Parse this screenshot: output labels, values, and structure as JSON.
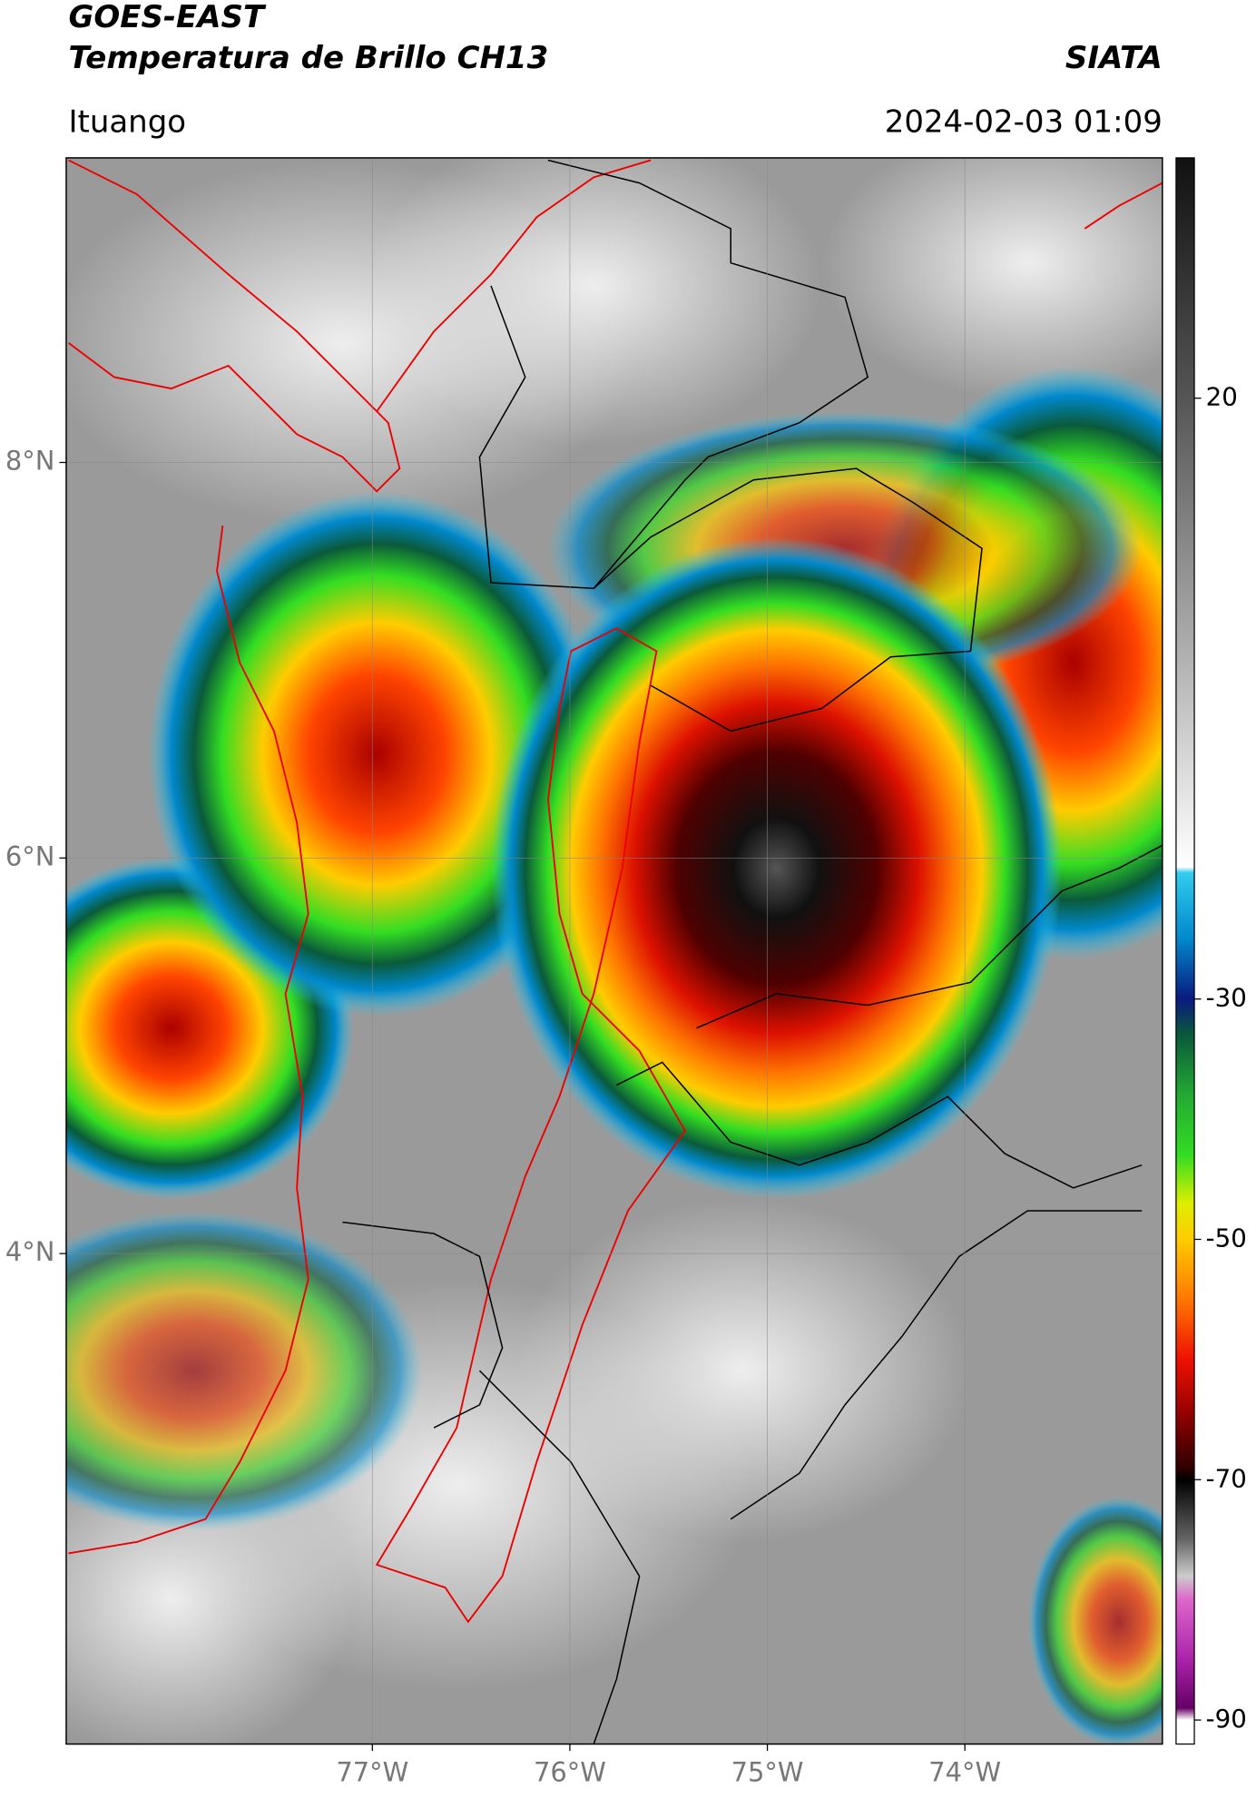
{
  "header": {
    "title": "GOES-EAST",
    "subtitle": "Temperatura de Brillo CH13",
    "brand": "SIATA",
    "location": "Ituango",
    "timestamp": "2024-02-03 01:09"
  },
  "map": {
    "xlim": [
      -78.55,
      -73.0
    ],
    "ylim": [
      1.52,
      9.54
    ],
    "xticks": [
      {
        "value": -77,
        "label": "77°W"
      },
      {
        "value": -76,
        "label": "76°W"
      },
      {
        "value": -75,
        "label": "75°W"
      },
      {
        "value": -74,
        "label": "74°W"
      }
    ],
    "yticks": [
      {
        "value": 8,
        "label": "8°N"
      },
      {
        "value": 6,
        "label": "6°N"
      },
      {
        "value": 4,
        "label": "4°N"
      }
    ],
    "grid": true
  },
  "colorbar": {
    "lim": [
      -92,
      40
    ],
    "ticks": [
      20,
      -30,
      -50,
      -70,
      -90
    ],
    "colormap": [
      {
        "value": 40,
        "color": "#111111"
      },
      {
        "value": 20,
        "color": "#555555"
      },
      {
        "value": 0,
        "color": "#aaaaaa"
      },
      {
        "value": -19,
        "color": "#ffffff"
      },
      {
        "value": -19.5,
        "color": "#33ccee"
      },
      {
        "value": -25,
        "color": "#0088cc"
      },
      {
        "value": -30,
        "color": "#0a1a80"
      },
      {
        "value": -33,
        "color": "#0a5a3a"
      },
      {
        "value": -38,
        "color": "#22aa33"
      },
      {
        "value": -43,
        "color": "#33dd22"
      },
      {
        "value": -47,
        "color": "#ddee00"
      },
      {
        "value": -50,
        "color": "#ffcc00"
      },
      {
        "value": -55,
        "color": "#ff7700"
      },
      {
        "value": -60,
        "color": "#ee1100"
      },
      {
        "value": -65,
        "color": "#880000"
      },
      {
        "value": -69,
        "color": "#300000"
      },
      {
        "value": -70,
        "color": "#000000"
      },
      {
        "value": -75,
        "color": "#666666"
      },
      {
        "value": -78,
        "color": "#cccccc"
      },
      {
        "value": -80,
        "color": "#dd66cc"
      },
      {
        "value": -85,
        "color": "#aa22aa"
      },
      {
        "value": -89,
        "color": "#660066"
      },
      {
        "value": -90,
        "color": "#ffffff"
      },
      {
        "value": -92,
        "color": "#ffffff"
      }
    ]
  }
}
